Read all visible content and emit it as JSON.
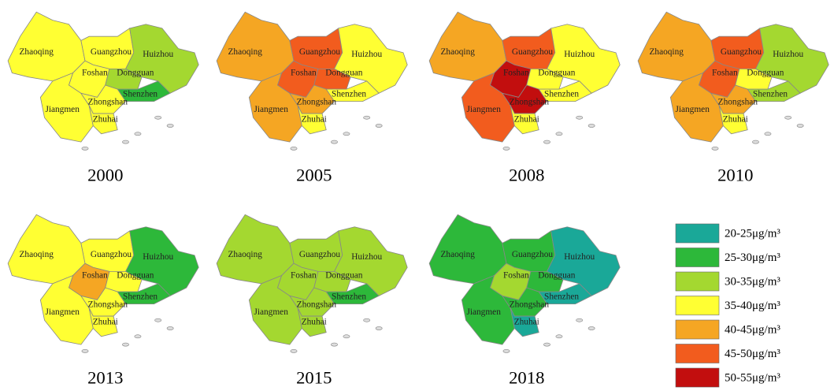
{
  "cities": [
    {
      "name": "Zhaoqing"
    },
    {
      "name": "Guangzhou"
    },
    {
      "name": "Huizhou"
    },
    {
      "name": "Foshan"
    },
    {
      "name": "Dongguan"
    },
    {
      "name": "Shenzhen"
    },
    {
      "name": "Jiangmen"
    },
    {
      "name": "Zhongshan"
    },
    {
      "name": "Zhuhai"
    }
  ],
  "maps": [
    {
      "year": "2000",
      "colors": [
        "#ffff33",
        "#ffff33",
        "#a4d830",
        "#ffff33",
        "#a4d830",
        "#2db83a",
        "#ffff33",
        "#ffff33",
        "#ffff33"
      ]
    },
    {
      "year": "2005",
      "colors": [
        "#f5a623",
        "#f25c1e",
        "#ffff33",
        "#f25c1e",
        "#f25c1e",
        "#ffff33",
        "#f5a623",
        "#f5a623",
        "#ffff33"
      ]
    },
    {
      "year": "2008",
      "colors": [
        "#f5a623",
        "#f25c1e",
        "#ffff33",
        "#c20e0e",
        "#ffff33",
        "#ffff33",
        "#f25c1e",
        "#c20e0e",
        "#ffff33"
      ]
    },
    {
      "year": "2010",
      "colors": [
        "#f5a623",
        "#f25c1e",
        "#a4d830",
        "#f25c1e",
        "#ffff33",
        "#a4d830",
        "#f5a623",
        "#f5a623",
        "#ffff33"
      ]
    },
    {
      "year": "2013",
      "colors": [
        "#ffff33",
        "#ffff33",
        "#2db83a",
        "#f5a623",
        "#ffff33",
        "#2db83a",
        "#ffff33",
        "#ffff33",
        "#ffff33"
      ]
    },
    {
      "year": "2015",
      "colors": [
        "#a4d830",
        "#a4d830",
        "#a4d830",
        "#a4d830",
        "#a4d830",
        "#2db83a",
        "#a4d830",
        "#a4d830",
        "#a4d830"
      ]
    },
    {
      "year": "2018",
      "colors": [
        "#2db83a",
        "#2db83a",
        "#1aa898",
        "#a4d830",
        "#2db83a",
        "#1aa898",
        "#2db83a",
        "#2db83a",
        "#1aa898"
      ]
    }
  ],
  "legend": [
    {
      "label": "20-25μg/m³",
      "color": "#1aa898"
    },
    {
      "label": "25-30μg/m³",
      "color": "#2db83a"
    },
    {
      "label": "30-35μg/m³",
      "color": "#a4d830"
    },
    {
      "label": "35-40μg/m³",
      "color": "#ffff33"
    },
    {
      "label": "40-45μg/m³",
      "color": "#f5a623"
    },
    {
      "label": "45-50μg/m³",
      "color": "#f25c1e"
    },
    {
      "label": "50-55μg/m³",
      "color": "#c20e0e"
    }
  ]
}
